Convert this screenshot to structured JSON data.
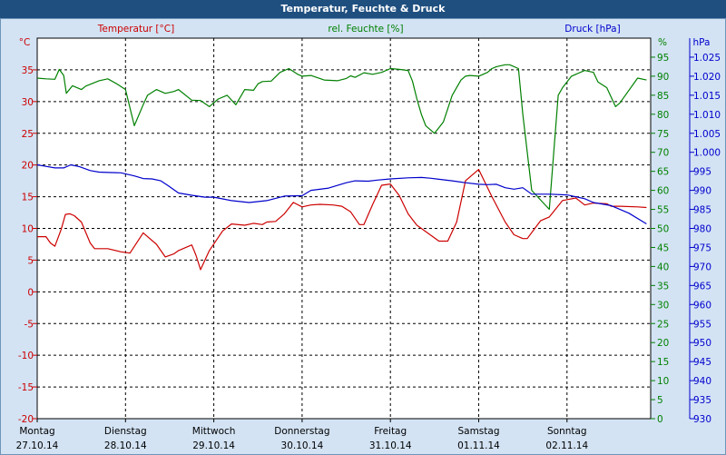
{
  "window": {
    "title": "Temperatur, Feuchte & Druck"
  },
  "colors": {
    "temperature": "#cc0000",
    "humidity": "#008000",
    "pressure": "#0000cc",
    "text": "#000000",
    "titlebar": "#1f4f7f",
    "panel": "#d3e3f4"
  },
  "chart_data": {
    "type": "line",
    "title": "Temperatur, Feuchte & Druck",
    "grid": true,
    "x_range": [
      0,
      7
    ],
    "categories": [
      {
        "day": "Montag",
        "date": "27.10.14"
      },
      {
        "day": "Dienstag",
        "date": "28.10.14"
      },
      {
        "day": "Mittwoch",
        "date": "29.10.14"
      },
      {
        "day": "Donnerstag",
        "date": "30.10.14"
      },
      {
        "day": "Freitag",
        "date": "31.10.14"
      },
      {
        "day": "Samstag",
        "date": "01.11.14"
      },
      {
        "day": "Sonntag",
        "date": "02.11.14"
      }
    ],
    "axes": {
      "temperature": {
        "label": "Temperatur [°C]",
        "unit": "°C",
        "ylim": [
          -20,
          40
        ],
        "ticks": [
          -20,
          -15,
          -10,
          -5,
          0,
          5,
          10,
          15,
          20,
          25,
          30,
          35
        ]
      },
      "humidity": {
        "label": "rel. Feuchte [%]",
        "unit": "%",
        "ylim": [
          0,
          100
        ],
        "ticks": [
          0,
          5,
          10,
          15,
          20,
          25,
          30,
          35,
          40,
          45,
          50,
          55,
          60,
          65,
          70,
          75,
          80,
          85,
          90,
          95
        ]
      },
      "pressure": {
        "label": "Druck [hPa]",
        "unit": "hPa",
        "ylim": [
          930,
          1030
        ],
        "ticks": [
          "930",
          "935",
          "940",
          "945",
          "950",
          "955",
          "960",
          "965",
          "970",
          "975",
          "980",
          "985",
          "990",
          "995",
          "1.000",
          "1.005",
          "1.010",
          "1.015",
          "1.020",
          "1.025"
        ]
      }
    },
    "series": [
      {
        "name": "Temperatur [°C]",
        "axis": "temperature",
        "x": [
          0,
          0.1,
          0.15,
          0.2,
          0.27,
          0.32,
          0.37,
          0.42,
          0.5,
          0.6,
          0.65,
          0.8,
          0.95,
          1.05,
          1.2,
          1.35,
          1.45,
          1.55,
          1.6,
          1.75,
          1.8,
          1.85,
          1.95,
          2.1,
          2.2,
          2.35,
          2.45,
          2.55,
          2.6,
          2.7,
          2.8,
          2.9,
          3.0,
          3.1,
          3.2,
          3.35,
          3.45,
          3.55,
          3.65,
          3.7,
          3.8,
          3.9,
          4.0,
          4.1,
          4.2,
          4.25,
          4.3,
          4.35,
          4.45,
          4.55,
          4.65,
          4.75,
          4.85,
          5.0,
          5.15,
          5.3,
          5.4,
          5.5,
          5.55,
          5.7,
          5.8,
          5.95,
          6.1,
          6.2,
          6.3,
          6.45,
          6.5,
          6.6,
          6.8,
          6.9
        ],
        "values": [
          8.7,
          8.7,
          7.7,
          7.2,
          9.8,
          12.2,
          12.3,
          12.0,
          11.0,
          7.7,
          6.8,
          6.8,
          6.3,
          6.1,
          9.3,
          7.5,
          5.5,
          6.0,
          6.5,
          7.4,
          5.7,
          3.5,
          6.5,
          9.6,
          10.7,
          10.5,
          10.8,
          10.6,
          11.0,
          11.1,
          12.3,
          14.1,
          13.4,
          13.7,
          13.8,
          13.7,
          13.5,
          12.6,
          10.6,
          10.6,
          13.8,
          16.8,
          17.0,
          15.2,
          12.3,
          11.4,
          10.5,
          10.0,
          9.0,
          8.0,
          8.0,
          11.0,
          17.5,
          19.3,
          15.0,
          11.0,
          9.0,
          8.4,
          8.4,
          11.2,
          11.8,
          14.4,
          14.8,
          13.7,
          14.0,
          13.9,
          13.5,
          13.5,
          13.4,
          13.3
        ]
      },
      {
        "name": "rel. Feuchte [%]",
        "axis": "humidity",
        "x": [
          0,
          0.1,
          0.2,
          0.25,
          0.3,
          0.33,
          0.4,
          0.5,
          0.55,
          0.7,
          0.8,
          0.9,
          1.0,
          1.1,
          1.2,
          1.25,
          1.35,
          1.45,
          1.55,
          1.6,
          1.75,
          1.85,
          1.95,
          2.05,
          2.15,
          2.25,
          2.35,
          2.45,
          2.5,
          2.55,
          2.65,
          2.75,
          2.85,
          2.95,
          3.0,
          3.1,
          3.25,
          3.4,
          3.5,
          3.55,
          3.6,
          3.7,
          3.8,
          3.9,
          4.0,
          4.1,
          4.2,
          4.25,
          4.3,
          4.35,
          4.4,
          4.5,
          4.6,
          4.7,
          4.8,
          4.85,
          4.9,
          5.0,
          5.1,
          5.15,
          5.2,
          5.3,
          5.35,
          5.45,
          5.5,
          5.6,
          5.7,
          5.8,
          5.9,
          5.95,
          6.05,
          6.2,
          6.3,
          6.35,
          6.45,
          6.55,
          6.6,
          6.8,
          6.9
        ],
        "values": [
          89.5,
          89.3,
          89.2,
          91.8,
          90.2,
          85.5,
          87.5,
          86.5,
          87.4,
          88.8,
          89.3,
          88.0,
          86.5,
          77.0,
          82.5,
          85.0,
          86.5,
          85.5,
          86.0,
          86.5,
          83.7,
          83.6,
          82.0,
          84.0,
          85.0,
          82.5,
          86.5,
          86.3,
          88.0,
          88.6,
          88.7,
          91.0,
          92.0,
          90.5,
          90.0,
          90.2,
          89.0,
          88.8,
          89.4,
          90.1,
          89.7,
          90.9,
          90.5,
          91.0,
          92.0,
          91.8,
          91.5,
          88.7,
          84.0,
          80.0,
          77.0,
          75.0,
          78.0,
          85.0,
          89.0,
          90.0,
          90.2,
          90.0,
          91.0,
          92.0,
          92.5,
          93.0,
          93.0,
          92.0,
          80.0,
          60.0,
          57.5,
          55.0,
          85.0,
          87.0,
          90.0,
          91.5,
          91.0,
          88.5,
          87.0,
          82.0,
          83.0,
          89.5,
          89.0
        ]
      },
      {
        "name": "Druck [hPa]",
        "axis": "pressure",
        "x": [
          0,
          0.1,
          0.2,
          0.3,
          0.38,
          0.48,
          0.6,
          0.7,
          0.8,
          0.95,
          1.1,
          1.2,
          1.3,
          1.4,
          1.48,
          1.6,
          1.75,
          1.9,
          2.0,
          2.2,
          2.4,
          2.6,
          2.8,
          3.0,
          3.1,
          3.3,
          3.5,
          3.6,
          3.75,
          3.85,
          4.0,
          4.2,
          4.35,
          4.45,
          4.55,
          4.7,
          4.85,
          5.0,
          5.1,
          5.2,
          5.3,
          5.4,
          5.5,
          5.6,
          5.8,
          6.0,
          6.2,
          6.3,
          6.5,
          6.7,
          6.9
        ],
        "values": [
          996.7,
          996.3,
          995.9,
          995.9,
          996.7,
          996.2,
          995.2,
          994.8,
          994.7,
          994.6,
          993.8,
          993.1,
          993.0,
          992.5,
          991.3,
          989.3,
          988.7,
          988.2,
          988.2,
          987.3,
          986.8,
          987.3,
          988.5,
          988.6,
          990.0,
          990.6,
          992.0,
          992.5,
          992.4,
          992.7,
          993.0,
          993.3,
          993.4,
          993.2,
          992.9,
          992.5,
          992.0,
          991.6,
          991.5,
          991.6,
          990.7,
          990.3,
          990.7,
          989.0,
          989.0,
          988.8,
          987.8,
          986.8,
          986.0,
          984.0,
          981.2
        ]
      }
    ]
  }
}
